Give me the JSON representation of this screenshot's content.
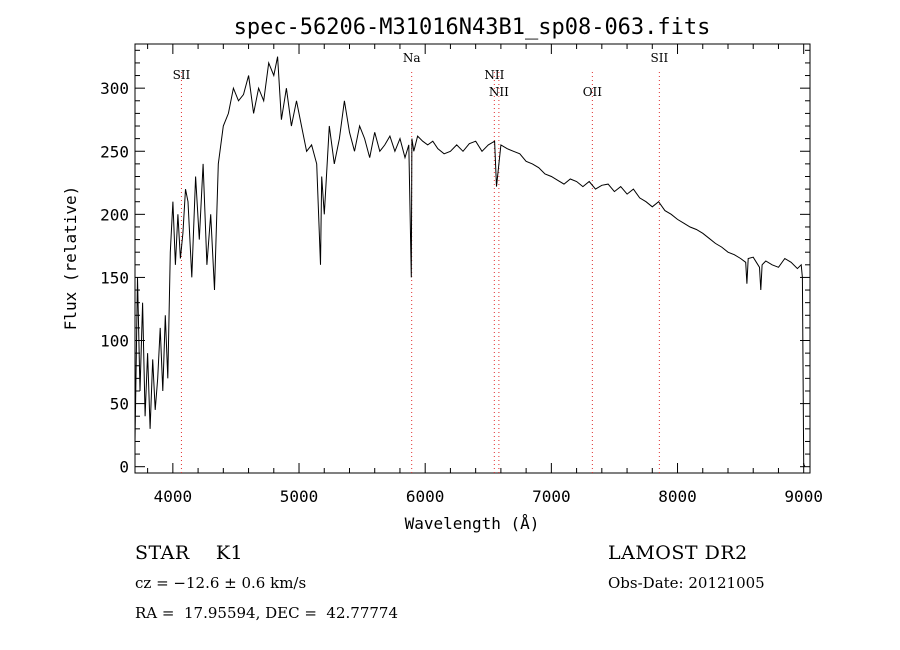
{
  "chart_data": {
    "type": "line",
    "title": "spec-56206-M31016N43B1_sp08-063.fits",
    "xlabel": "Wavelength (Å)",
    "ylabel": "Flux (relative)",
    "xlim": [
      3700,
      9050
    ],
    "ylim": [
      -5,
      335
    ],
    "xticks": [
      4000,
      5000,
      6000,
      7000,
      8000,
      9000
    ],
    "yticks": [
      0,
      50,
      100,
      150,
      200,
      250,
      300
    ],
    "grid": false,
    "line_color": "#000000",
    "marker_color": "#e03030",
    "line_markers": [
      {
        "label": "SII",
        "x": 4068
      },
      {
        "label": "Na",
        "x": 5893
      },
      {
        "label": "NII",
        "x": 6548
      },
      {
        "label": "NII",
        "x": 6584
      },
      {
        "label": "OII",
        "x": 7325
      },
      {
        "label": "SII",
        "x": 7856
      }
    ],
    "series": [
      {
        "x": [
          3700,
          3720,
          3740,
          3760,
          3780,
          3800,
          3820,
          3840,
          3860,
          3880,
          3900,
          3920,
          3940,
          3960,
          3980,
          4000,
          4020,
          4040,
          4060,
          4080,
          4100,
          4120,
          4150,
          4180,
          4210,
          4240,
          4270,
          4300,
          4330,
          4360,
          4400,
          4440,
          4480,
          4520,
          4560,
          4600,
          4640,
          4680,
          4720,
          4760,
          4800,
          4830,
          4860,
          4900,
          4940,
          4980,
          5020,
          5060,
          5100,
          5140,
          5170,
          5180,
          5200,
          5240,
          5280,
          5320,
          5360,
          5400,
          5440,
          5480,
          5520,
          5560,
          5600,
          5640,
          5680,
          5720,
          5760,
          5800,
          5840,
          5870,
          5890,
          5895,
          5910,
          5940,
          5980,
          6020,
          6060,
          6100,
          6150,
          6200,
          6250,
          6300,
          6350,
          6400,
          6450,
          6500,
          6550,
          6565,
          6600,
          6650,
          6700,
          6750,
          6800,
          6850,
          6900,
          6950,
          7000,
          7050,
          7100,
          7150,
          7200,
          7250,
          7300,
          7350,
          7400,
          7450,
          7500,
          7550,
          7600,
          7650,
          7700,
          7750,
          7800,
          7850,
          7900,
          7950,
          8000,
          8050,
          8100,
          8150,
          8200,
          8250,
          8300,
          8350,
          8400,
          8450,
          8500,
          8540,
          8550,
          8560,
          8600,
          8650,
          8660,
          8670,
          8700,
          8750,
          8800,
          8850,
          8900,
          8950,
          8980,
          8990,
          9000,
          9010
        ],
        "values": [
          20,
          150,
          60,
          130,
          40,
          90,
          30,
          85,
          45,
          70,
          110,
          60,
          120,
          70,
          170,
          210,
          160,
          200,
          165,
          185,
          220,
          210,
          150,
          230,
          180,
          240,
          160,
          200,
          140,
          240,
          270,
          280,
          300,
          290,
          295,
          310,
          280,
          300,
          290,
          320,
          310,
          325,
          275,
          300,
          270,
          290,
          270,
          250,
          255,
          240,
          160,
          230,
          200,
          270,
          240,
          260,
          290,
          265,
          250,
          270,
          260,
          245,
          265,
          250,
          255,
          262,
          250,
          260,
          245,
          255,
          150,
          260,
          250,
          262,
          258,
          255,
          258,
          252,
          248,
          250,
          255,
          250,
          256,
          258,
          250,
          255,
          258,
          222,
          255,
          252,
          250,
          248,
          242,
          240,
          237,
          232,
          230,
          227,
          224,
          228,
          226,
          222,
          226,
          220,
          223,
          224,
          218,
          222,
          216,
          220,
          213,
          210,
          206,
          210,
          203,
          200,
          196,
          193,
          190,
          188,
          185,
          181,
          177,
          174,
          170,
          168,
          165,
          162,
          145,
          165,
          166,
          158,
          140,
          160,
          163,
          160,
          158,
          165,
          162,
          157,
          160,
          150,
          2,
          0
        ]
      }
    ]
  },
  "info": {
    "star": "STAR    K1",
    "survey": "LAMOST DR2",
    "cz": "cz = −12.6 ± 0.6 km/s",
    "obs_date": "Obs-Date: 20121005",
    "coords": "RA =  17.95594, DEC =  42.77774"
  }
}
